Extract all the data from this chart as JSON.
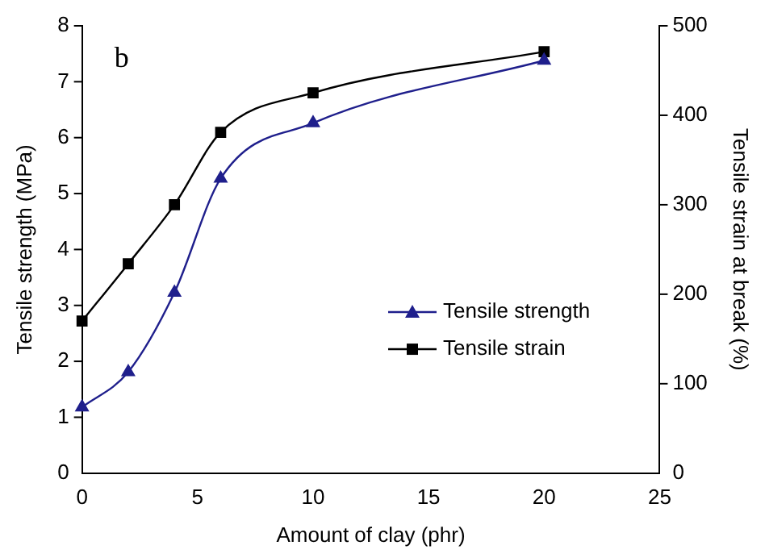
{
  "chart_data": {
    "type": "line",
    "xlabel": "Amount of clay (phr)",
    "ylabel": "Tensile strength (MPa)",
    "y2label": "Tensile strain at break (%)",
    "annotations": [
      "b"
    ],
    "x": [
      0,
      2,
      4,
      6,
      10,
      20
    ],
    "series": [
      {
        "name": "Tensile strength",
        "color": "#1f1f8c",
        "marker": "triangle",
        "values": [
          1.18,
          1.81,
          3.23,
          5.27,
          6.26,
          7.38
        ]
      },
      {
        "name": "Tensile strain",
        "color": "#000000",
        "marker": "square",
        "axis": "y2",
        "values": [
          170,
          234,
          300,
          381,
          425,
          471
        ]
      }
    ],
    "xlim": [
      0,
      25
    ],
    "xticks": [
      0,
      5,
      10,
      15,
      20,
      25
    ],
    "ylim": [
      0,
      8
    ],
    "yticks": [
      0,
      1,
      2,
      3,
      4,
      5,
      6,
      7,
      8
    ],
    "y2lim": [
      0,
      500
    ],
    "y2ticks": [
      0,
      100,
      200,
      300,
      400,
      500
    ],
    "grid": false,
    "legend": "right",
    "line_style": "solid"
  }
}
